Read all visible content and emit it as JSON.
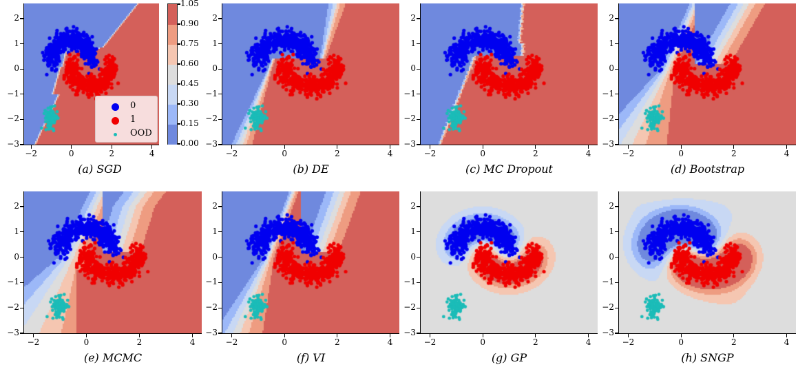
{
  "colors": {
    "levels": [
      "#6f89de",
      "#9cb8f8",
      "#c8d8f4",
      "#dddddd",
      "#f5c6b1",
      "#ee9c81",
      "#d4605a"
    ],
    "class0": "#0000f0",
    "class1": "#f00000",
    "ood": "#1bbcb8"
  },
  "colorbar": {
    "ticks": [
      "1.05",
      "0.90",
      "0.75",
      "0.60",
      "0.45",
      "0.30",
      "0.15",
      "0.00"
    ],
    "levels": [
      0.0,
      0.15,
      0.3,
      0.45,
      0.6,
      0.75,
      0.9,
      1.05
    ]
  },
  "legend": {
    "items": [
      {
        "label": "0",
        "marker": "class0"
      },
      {
        "label": "1",
        "marker": "class1"
      },
      {
        "label": "OOD",
        "marker": "ood"
      }
    ]
  },
  "chart_data": [
    {
      "type": "heatmap",
      "title": "(a) SGD",
      "model": "sgd",
      "xlim": [
        -2.35,
        4.35
      ],
      "ylim": [
        -3,
        2.6
      ],
      "xticks": [
        "−2",
        "0",
        "2",
        "4"
      ],
      "xtick_values": [
        -2,
        0,
        2,
        4
      ],
      "yticks": [
        "2",
        "1",
        "0",
        "−1",
        "−2",
        "−3"
      ],
      "ytick_values": [
        2,
        1,
        0,
        -1,
        -2,
        -3
      ],
      "legend": "lower-right",
      "colorbar": true
    },
    {
      "type": "heatmap",
      "title": "(b) DE",
      "model": "de",
      "xlim": [
        -2.35,
        4.35
      ],
      "ylim": [
        -3,
        2.6
      ],
      "xticks": [
        "−2",
        "0",
        "2",
        "4"
      ],
      "xtick_values": [
        -2,
        0,
        2,
        4
      ],
      "yticks": [
        "2",
        "1",
        "0",
        "−1",
        "−2",
        "−3"
      ],
      "ytick_values": [
        2,
        1,
        0,
        -1,
        -2,
        -3
      ]
    },
    {
      "type": "heatmap",
      "title": "(c) MC Dropout",
      "model": "mcd",
      "xlim": [
        -2.35,
        4.35
      ],
      "ylim": [
        -3,
        2.6
      ],
      "xticks": [
        "−2",
        "0",
        "2",
        "4"
      ],
      "xtick_values": [
        -2,
        0,
        2,
        4
      ],
      "yticks": [
        "2",
        "1",
        "0",
        "−1",
        "−2",
        "−3"
      ],
      "ytick_values": [
        2,
        1,
        0,
        -1,
        -2,
        -3
      ]
    },
    {
      "type": "heatmap",
      "title": "(d) Bootstrap",
      "model": "boot",
      "xlim": [
        -2.35,
        4.35
      ],
      "ylim": [
        -3,
        2.6
      ],
      "xticks": [
        "−2",
        "0",
        "2",
        "4"
      ],
      "xtick_values": [
        -2,
        0,
        2,
        4
      ],
      "yticks": [
        "2",
        "1",
        "0",
        "−1",
        "−2",
        "−3"
      ],
      "ytick_values": [
        2,
        1,
        0,
        -1,
        -2,
        -3
      ]
    },
    {
      "type": "heatmap",
      "title": "(e) MCMC",
      "model": "mcmc",
      "xlim": [
        -2.35,
        4.35
      ],
      "ylim": [
        -3,
        2.6
      ],
      "xticks": [
        "−2",
        "0",
        "2",
        "4"
      ],
      "xtick_values": [
        -2,
        0,
        2,
        4
      ],
      "yticks": [
        "2",
        "1",
        "0",
        "−1",
        "−2",
        "−3"
      ],
      "ytick_values": [
        2,
        1,
        0,
        -1,
        -2,
        -3
      ]
    },
    {
      "type": "heatmap",
      "title": "(f) VI",
      "model": "vi",
      "xlim": [
        -2.35,
        4.35
      ],
      "ylim": [
        -3,
        2.6
      ],
      "xticks": [
        "−2",
        "0",
        "2",
        "4"
      ],
      "xtick_values": [
        -2,
        0,
        2,
        4
      ],
      "yticks": [
        "2",
        "1",
        "0",
        "−1",
        "−2",
        "−3"
      ],
      "ytick_values": [
        2,
        1,
        0,
        -1,
        -2,
        -3
      ]
    },
    {
      "type": "heatmap",
      "title": "(g) GP",
      "model": "gp",
      "xlim": [
        -2.35,
        4.35
      ],
      "ylim": [
        -3,
        2.6
      ],
      "xticks": [
        "−2",
        "0",
        "2",
        "4"
      ],
      "xtick_values": [
        -2,
        0,
        2,
        4
      ],
      "yticks": [
        "2",
        "1",
        "0",
        "−1",
        "−2",
        "−3"
      ],
      "ytick_values": [
        2,
        1,
        0,
        -1,
        -2,
        -3
      ]
    },
    {
      "type": "heatmap",
      "title": "(h) SNGP",
      "model": "sngp",
      "xlim": [
        -2.35,
        4.35
      ],
      "ylim": [
        -3,
        2.6
      ],
      "xticks": [
        "−2",
        "0",
        "2",
        "4"
      ],
      "xtick_values": [
        -2,
        0,
        2,
        4
      ],
      "yticks": [
        "2",
        "1",
        "0",
        "−1",
        "−2",
        "−3"
      ],
      "ytick_values": [
        2,
        1,
        0,
        -1,
        -2,
        -3
      ]
    }
  ],
  "scatter": {
    "class0": {
      "name": "0",
      "shape": "upper moon",
      "center": [
        0,
        0
      ],
      "radius": 1.0,
      "noise": 0.15,
      "count": 500
    },
    "class1": {
      "name": "1",
      "shape": "lower moon",
      "center": [
        1,
        0.5
      ],
      "radius": 1.0,
      "noise": 0.15,
      "count": 500
    },
    "ood": {
      "name": "OOD",
      "center": [
        -1,
        -1.95
      ],
      "spread": 0.15,
      "count": 100
    }
  }
}
